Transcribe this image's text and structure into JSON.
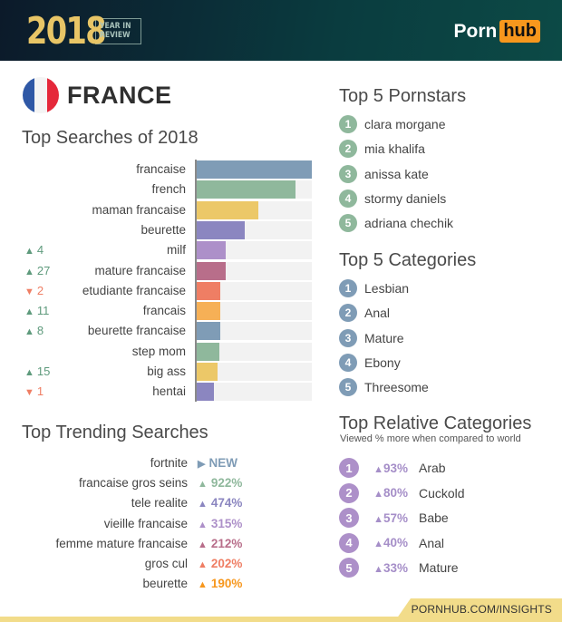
{
  "header": {
    "year": "2018",
    "year_label_line1": "YEAR IN",
    "year_label_line2": "REVIEW",
    "logo_left": "Porn",
    "logo_right": "hub"
  },
  "country": {
    "name": "FRANCE",
    "flag_colors": [
      "#2f58a6",
      "#f4f4f4",
      "#e5283a"
    ]
  },
  "top_searches": {
    "title": "Top Searches of 2018",
    "items": [
      {
        "label": "francaise",
        "change": "",
        "dir": "",
        "pct": 100,
        "color": "#7f9cb6"
      },
      {
        "label": "french",
        "change": "",
        "dir": "",
        "pct": 86,
        "color": "#8fb89c"
      },
      {
        "label": "maman francaise",
        "change": "",
        "dir": "",
        "pct": 54,
        "color": "#ecc868"
      },
      {
        "label": "beurette",
        "change": "",
        "dir": "",
        "pct": 42,
        "color": "#8b86c0"
      },
      {
        "label": "milf",
        "change": "4",
        "dir": "up",
        "pct": 26,
        "color": "#ad90c9"
      },
      {
        "label": "mature francaise",
        "change": "27",
        "dir": "up",
        "pct": 26,
        "color": "#b86e8a"
      },
      {
        "label": "etudiante francaise",
        "change": "2",
        "dir": "down",
        "pct": 21,
        "color": "#ef7e64"
      },
      {
        "label": "francais",
        "change": "11",
        "dir": "up",
        "pct": 21,
        "color": "#f6b056"
      },
      {
        "label": "beurette francaise",
        "change": "8",
        "dir": "up",
        "pct": 21,
        "color": "#7f9cb6"
      },
      {
        "label": "step mom",
        "change": "",
        "dir": "",
        "pct": 20,
        "color": "#8fb89c"
      },
      {
        "label": "big ass",
        "change": "15",
        "dir": "up",
        "pct": 19,
        "color": "#ecc868"
      },
      {
        "label": "hentai",
        "change": "1",
        "dir": "down",
        "pct": 16,
        "color": "#8b86c0"
      }
    ],
    "up_color": "#5e9a7c",
    "down_color": "#ef7e64"
  },
  "trending": {
    "title": "Top Trending Searches",
    "items": [
      {
        "label": "fortnite",
        "value": "NEW",
        "glyph": "▶",
        "color": "#7f9cb6"
      },
      {
        "label": "francaise gros seins",
        "value": "922%",
        "glyph": "▲",
        "color": "#8fb89c"
      },
      {
        "label": "tele realite",
        "value": "474%",
        "glyph": "▲",
        "color": "#8b86c0"
      },
      {
        "label": "vieille francaise",
        "value": "315%",
        "glyph": "▲",
        "color": "#ad90c9"
      },
      {
        "label": "femme mature francaise",
        "value": "212%",
        "glyph": "▲",
        "color": "#b86e8a"
      },
      {
        "label": "gros cul",
        "value": "202%",
        "glyph": "▲",
        "color": "#ef7e64"
      },
      {
        "label": "beurette",
        "value": "190%",
        "glyph": "▲",
        "color": "#f7971d"
      }
    ]
  },
  "pornstars": {
    "title": "Top 5 Pornstars",
    "color": "#8fb89c",
    "items": [
      {
        "rank": "1",
        "name": "clara morgane"
      },
      {
        "rank": "2",
        "name": "mia khalifa"
      },
      {
        "rank": "3",
        "name": "anissa kate"
      },
      {
        "rank": "4",
        "name": "stormy daniels"
      },
      {
        "rank": "5",
        "name": "adriana chechik"
      }
    ]
  },
  "categories": {
    "title": "Top 5 Categories",
    "color": "#7f9cb6",
    "items": [
      {
        "rank": "1",
        "name": "Lesbian"
      },
      {
        "rank": "2",
        "name": "Anal"
      },
      {
        "rank": "3",
        "name": "Mature"
      },
      {
        "rank": "4",
        "name": "Ebony"
      },
      {
        "rank": "5",
        "name": "Threesome"
      }
    ]
  },
  "relative": {
    "title": "Top Relative Categories",
    "subtitle": "Viewed % more when compared to world",
    "color": "#ad90c9",
    "items": [
      {
        "rank": "1",
        "pct": "93%",
        "name": "Arab"
      },
      {
        "rank": "2",
        "pct": "80%",
        "name": "Cuckold"
      },
      {
        "rank": "3",
        "pct": "57%",
        "name": "Babe"
      },
      {
        "rank": "4",
        "pct": "40%",
        "name": "Anal"
      },
      {
        "rank": "5",
        "pct": "33%",
        "name": "Mature"
      }
    ]
  },
  "footer": {
    "link": "PORNHUB.COM/INSIGHTS"
  },
  "chart_data": {
    "type": "bar",
    "orientation": "horizontal",
    "title": "Top Searches of 2018",
    "categories": [
      "francaise",
      "french",
      "maman francaise",
      "beurette",
      "milf",
      "mature francaise",
      "etudiante francaise",
      "francais",
      "beurette francaise",
      "step mom",
      "big ass",
      "hentai"
    ],
    "values": [
      100,
      86,
      54,
      42,
      26,
      26,
      21,
      21,
      21,
      20,
      19,
      16
    ],
    "rank_changes": [
      "",
      "",
      "",
      "",
      "▲ 4",
      "▲ 27",
      "▼ 2",
      "▲ 11",
      "▲ 8",
      "",
      "▲ 15",
      "▼ 1"
    ],
    "xlabel": "",
    "ylabel": "",
    "xlim": [
      0,
      100
    ],
    "grid": false,
    "legend": "none"
  }
}
